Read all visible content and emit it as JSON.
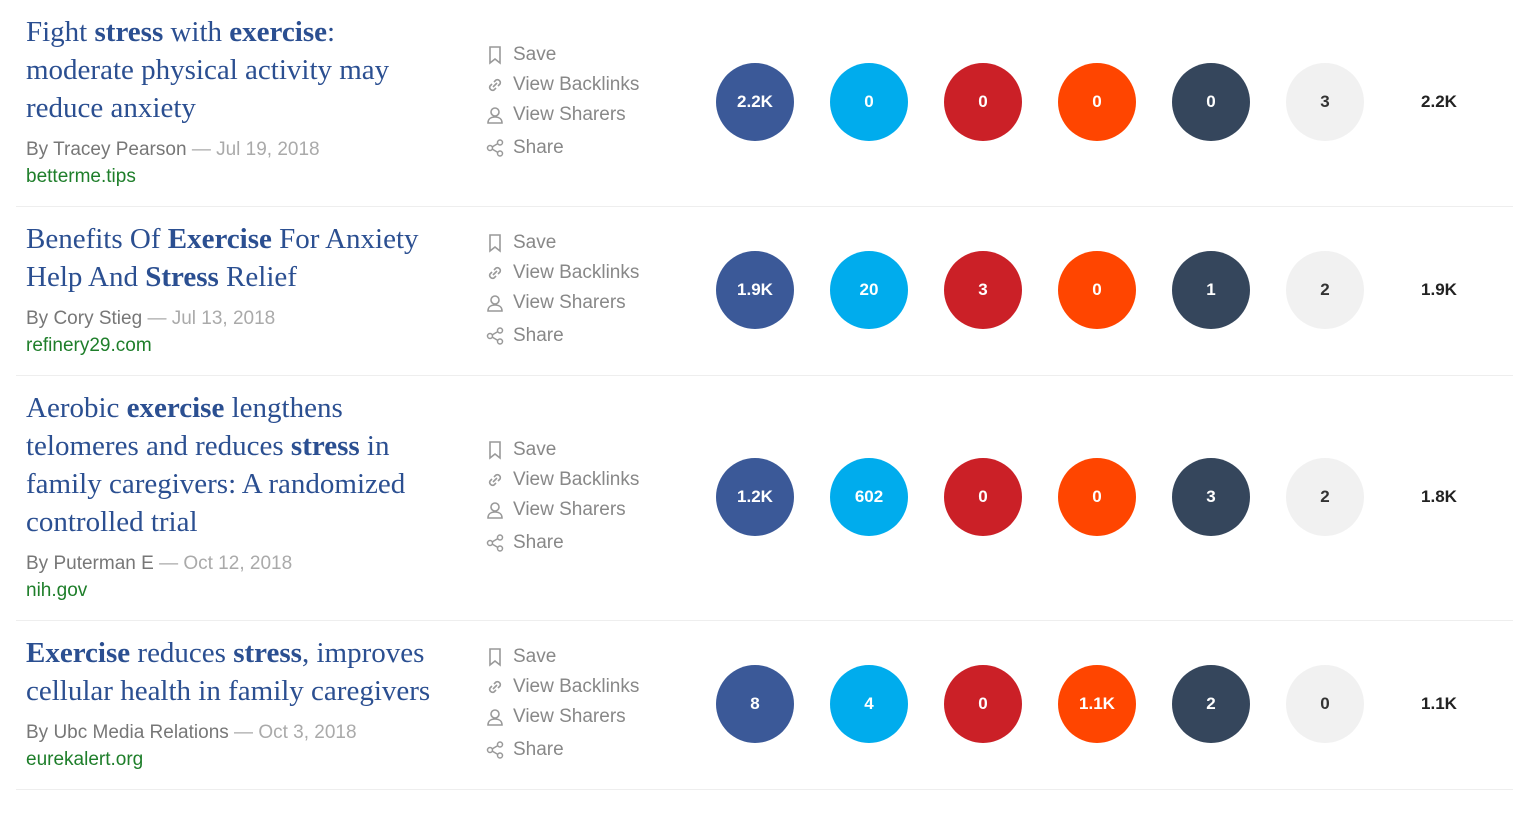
{
  "separator": "—",
  "actions": [
    "Save",
    "View Backlinks",
    "View Sharers",
    "Share"
  ],
  "metric_colors": [
    "#3b5998",
    "#00aced",
    "#cb2027",
    "#ff4500",
    "#35465c",
    "#f1f1f1"
  ],
  "articles": [
    {
      "title": [
        {
          "text": "Fight ",
          "bold": false
        },
        {
          "text": "stress",
          "bold": true
        },
        {
          "text": " with ",
          "bold": false
        },
        {
          "text": "exercise",
          "bold": true
        },
        {
          "text": ": moderate physical activity may reduce anxiety",
          "bold": false
        }
      ],
      "author": "By Tracey Pearson",
      "date": "Jul 19, 2018",
      "domain": "betterme.tips",
      "metrics": [
        "2.2K",
        "0",
        "0",
        "0",
        "0",
        "3"
      ],
      "total": "2.2K"
    },
    {
      "title": [
        {
          "text": "Benefits Of ",
          "bold": false
        },
        {
          "text": "Exercise",
          "bold": true
        },
        {
          "text": " For Anxiety Help And ",
          "bold": false
        },
        {
          "text": "Stress",
          "bold": true
        },
        {
          "text": " Relief",
          "bold": false
        }
      ],
      "author": "By Cory Stieg",
      "date": "Jul 13, 2018",
      "domain": "refinery29.com",
      "metrics": [
        "1.9K",
        "20",
        "3",
        "0",
        "1",
        "2"
      ],
      "total": "1.9K"
    },
    {
      "title": [
        {
          "text": "Aerobic ",
          "bold": false
        },
        {
          "text": "exercise",
          "bold": true
        },
        {
          "text": " lengthens telomeres and reduces ",
          "bold": false
        },
        {
          "text": "stress",
          "bold": true
        },
        {
          "text": " in family caregivers: A randomized controlled trial",
          "bold": false
        }
      ],
      "author": "By Puterman E",
      "date": "Oct 12, 2018",
      "domain": "nih.gov",
      "metrics": [
        "1.2K",
        "602",
        "0",
        "0",
        "3",
        "2"
      ],
      "total": "1.8K"
    },
    {
      "title": [
        {
          "text": "Exercise",
          "bold": true
        },
        {
          "text": " reduces ",
          "bold": false
        },
        {
          "text": "stress",
          "bold": true
        },
        {
          "text": ", improves cellular health in family caregivers",
          "bold": false
        }
      ],
      "author": "By Ubc Media Relations",
      "date": "Oct 3, 2018",
      "domain": "eurekalert.org",
      "metrics": [
        "8",
        "4",
        "0",
        "1.1K",
        "2",
        "0"
      ],
      "total": "1.1K"
    }
  ]
}
